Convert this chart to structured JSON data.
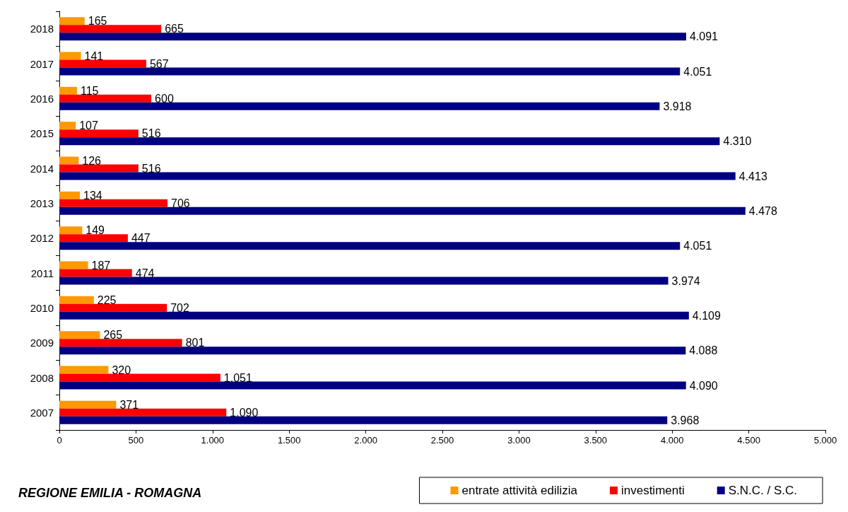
{
  "chart_data": {
    "type": "bar",
    "orientation": "horizontal",
    "categories": [
      "2018",
      "2017",
      "2016",
      "2015",
      "2014",
      "2013",
      "2012",
      "2011",
      "2010",
      "2009",
      "2008",
      "2007"
    ],
    "series": [
      {
        "name": "entrate attività edilizia",
        "color": "#ff9900",
        "values": [
          165,
          141,
          115,
          107,
          126,
          134,
          149,
          187,
          225,
          265,
          320,
          371
        ],
        "value_labels": [
          "165",
          "141",
          "115",
          "107",
          "126",
          "134",
          "149",
          "187",
          "225",
          "265",
          "320",
          "371"
        ]
      },
      {
        "name": "investimenti",
        "color": "#ff0000",
        "values": [
          665,
          567,
          600,
          516,
          516,
          706,
          447,
          474,
          702,
          801,
          1051,
          1090
        ],
        "value_labels": [
          "665",
          "567",
          "600",
          "516",
          "516",
          "706",
          "447",
          "474",
          "702",
          "801",
          "1.051",
          "1.090"
        ]
      },
      {
        "name": "S.N.C. / S.C.",
        "color": "#000080",
        "values": [
          4091,
          4051,
          3918,
          4310,
          4413,
          4478,
          4051,
          3974,
          4109,
          4088,
          4090,
          3968
        ],
        "value_labels": [
          "4.091",
          "4.051",
          "3.918",
          "4.310",
          "4.413",
          "4.478",
          "4.051",
          "3.974",
          "4.109",
          "4.088",
          "4.090",
          "3.968"
        ]
      }
    ],
    "xlim": [
      0,
      5000
    ],
    "xticks": [
      0,
      500,
      {
        "value": 1000,
        "label": "1.000"
      },
      {
        "value": 1500,
        "label": "1.500"
      },
      {
        "value": 2000,
        "label": "2.000"
      },
      {
        "value": 2500,
        "label": "2.500"
      },
      {
        "value": 3000,
        "label": "3.000"
      },
      {
        "value": 3500,
        "label": "3.500"
      },
      {
        "value": 4000,
        "label": "4.000"
      },
      {
        "value": 4500,
        "label": "4.500"
      },
      {
        "value": 5000,
        "label": "5.000"
      }
    ],
    "grid": false,
    "legend": "bottom right",
    "annotations": [
      "REGIONE EMILIA - ROMAGNA"
    ]
  }
}
